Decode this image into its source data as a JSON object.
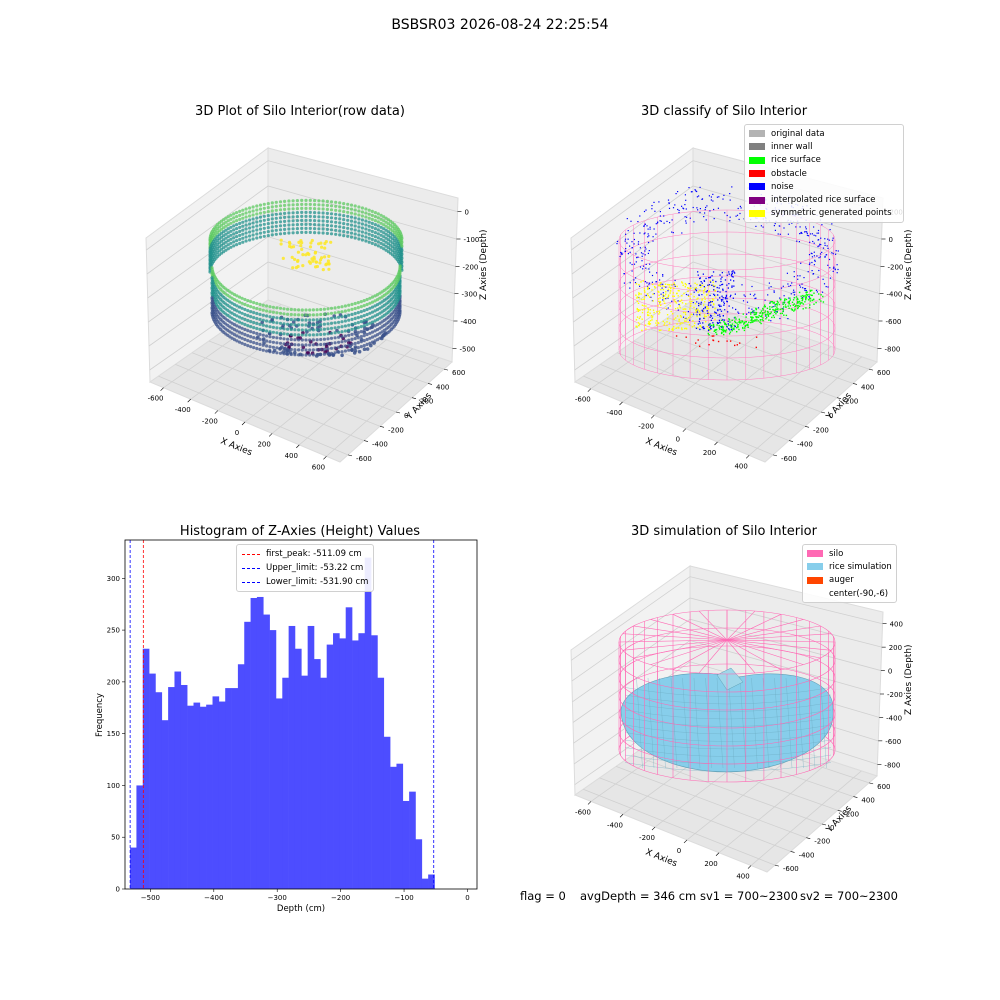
{
  "suptitle": "BSBSR03 2026-08-24 22:25:54",
  "panels": {
    "raw": {
      "title": "3D Plot of Silo Interior(row data)",
      "xlabel": "X Axies",
      "ylabel": "Y Axies",
      "zlabel": "Z Axies (Depth)",
      "xticks": [
        "-600",
        "-400",
        "-200",
        "0",
        "200",
        "400",
        "600"
      ],
      "yticks": [
        "-600",
        "-400",
        "-200",
        "0",
        "200",
        "400",
        "600"
      ],
      "zticks": [
        "0",
        "-100",
        "-200",
        "-300",
        "-400",
        "-500"
      ],
      "colormap": [
        "#440154",
        "#3b528b",
        "#21918c",
        "#5ec962",
        "#fde725"
      ]
    },
    "classify": {
      "title": "3D classify of Silo Interior",
      "xlabel": "X Axies",
      "ylabel": "Y Axies",
      "zlabel": "Z Axies (Depth)",
      "xticks": [
        "-600",
        "-400",
        "-200",
        "0",
        "200",
        "400"
      ],
      "yticks": [
        "-600",
        "-400",
        "-200",
        "0",
        "200",
        "400",
        "600"
      ],
      "zticks": [
        "200",
        "0",
        "-200",
        "-400",
        "-600",
        "-800"
      ],
      "legend": [
        {
          "label": "original data",
          "color": "#b3b3b3"
        },
        {
          "label": "inner wall",
          "color": "#808080"
        },
        {
          "label": "rice surface",
          "color": "#00ff00"
        },
        {
          "label": "obstacle",
          "color": "#ff0000"
        },
        {
          "label": "noise",
          "color": "#0000ff"
        },
        {
          "label": "interpolated rice surface",
          "color": "#800080"
        },
        {
          "label": "symmetric generated points",
          "color": "#ffff00"
        }
      ],
      "wire_color": "#ff80c0"
    },
    "simulation": {
      "title": "3D simulation of Silo Interior",
      "xlabel": "X Axies",
      "ylabel": "Y Axies",
      "zlabel": "Z Axies (Depth)",
      "xticks": [
        "-600",
        "-400",
        "-200",
        "0",
        "200",
        "400"
      ],
      "yticks": [
        "-600",
        "-400",
        "-200",
        "0",
        "200",
        "400",
        "600"
      ],
      "zticks": [
        "400",
        "200",
        "0",
        "-200",
        "-400",
        "-600",
        "-800"
      ],
      "legend": [
        {
          "label": "silo",
          "color": "#ff69b4"
        },
        {
          "label": "rice simulation",
          "color": "#87ceeb"
        },
        {
          "label": "auger",
          "color": "#ff4500"
        },
        {
          "label": "center(-90,-6)",
          "color": ""
        }
      ],
      "surface_color": "#87ceeb",
      "wire_color": "#ff69b4"
    }
  },
  "chart_data": {
    "type": "bar",
    "title": "Histogram of Z-Axies (Height) Values",
    "xlabel": "Depth (cm)",
    "ylabel": "Frequency",
    "xlim": [
      -540,
      15
    ],
    "ylim": [
      0,
      337
    ],
    "xticks": [
      -500,
      -400,
      -300,
      -200,
      -100,
      0
    ],
    "yticks": [
      0,
      50,
      100,
      150,
      200,
      250,
      300
    ],
    "bar_color": "#4d4dff",
    "bin_edges": [
      -532,
      -522,
      -512,
      -502,
      -492,
      -482,
      -472,
      -462,
      -452,
      -442,
      -432,
      -422,
      -412,
      -402,
      -392,
      -382,
      -372,
      -362,
      -352,
      -342,
      -332,
      -322,
      -312,
      -302,
      -292,
      -282,
      -272,
      -262,
      -252,
      -242,
      -232,
      -222,
      -212,
      -202,
      -192,
      -182,
      -172,
      -162,
      -152,
      -142,
      -132,
      -122,
      -112,
      -102,
      -92,
      -82,
      -72,
      -62,
      -52,
      -42,
      -32,
      -22,
      -12
    ],
    "values": [
      40,
      100,
      232,
      208,
      190,
      163,
      195,
      210,
      197,
      177,
      180,
      176,
      178,
      186,
      181,
      194,
      194,
      217,
      258,
      281,
      282,
      265,
      250,
      184,
      204,
      254,
      232,
      206,
      254,
      222,
      204,
      236,
      247,
      242,
      272,
      240,
      247,
      320,
      245,
      204,
      147,
      118,
      121,
      85,
      94,
      48,
      10,
      14,
      0,
      0,
      0,
      0
    ],
    "lines": [
      {
        "label": "first_peak: -511.09 cm",
        "x": -511.09,
        "color": "#ff0000"
      },
      {
        "label": "Upper_limit: -53.22 cm",
        "x": -53.22,
        "color": "#0000ff"
      },
      {
        "label": "Lower_limit: -531.90 cm",
        "x": -531.9,
        "color": "#0000ff"
      }
    ]
  },
  "footer": {
    "flag": "flag = 0",
    "avg": "avgDepth = 346 cm",
    "sv1": "sv1 = 700~2300",
    "sv2": "sv2 = 700~2300"
  }
}
